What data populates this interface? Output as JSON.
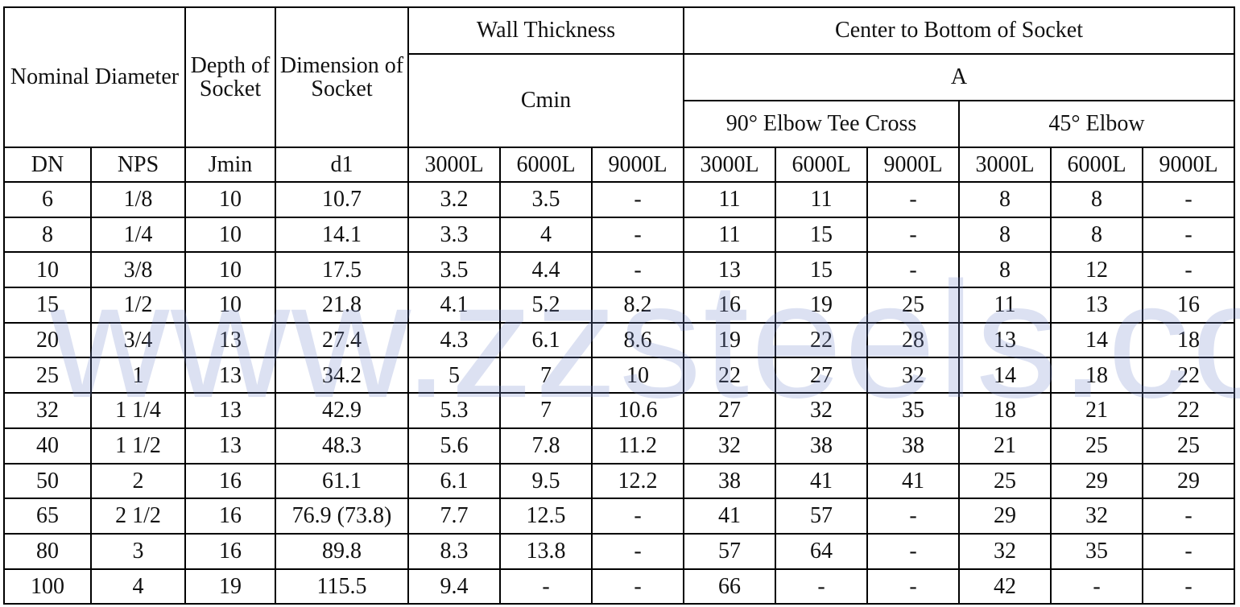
{
  "header": {
    "nominal_diameter": "Nominal Diameter",
    "depth_of_socket": "Depth of Socket",
    "dimension_of_socket": "Dimension of Socket",
    "wall_thickness": "Wall Thickness",
    "cmin": "Cmin",
    "center_to_bottom": "Center to Bottom of Socket",
    "a": "A",
    "elbow_90": "90° Elbow Tee Cross",
    "elbow_45": "45° Elbow"
  },
  "subheader": [
    "DN",
    "NPS",
    "Jmin",
    "d1",
    "3000L",
    "6000L",
    "9000L",
    "3000L",
    "6000L",
    "9000L",
    "3000L",
    "6000L",
    "9000L"
  ],
  "rows": [
    [
      "6",
      "1/8",
      "10",
      "10.7",
      "3.2",
      "3.5",
      "-",
      "11",
      "11",
      "-",
      "8",
      "8",
      "-"
    ],
    [
      "8",
      "1/4",
      "10",
      "14.1",
      "3.3",
      "4",
      "-",
      "11",
      "15",
      "-",
      "8",
      "8",
      "-"
    ],
    [
      "10",
      "3/8",
      "10",
      "17.5",
      "3.5",
      "4.4",
      "-",
      "13",
      "15",
      "-",
      "8",
      "12",
      "-"
    ],
    [
      "15",
      "1/2",
      "10",
      "21.8",
      "4.1",
      "5.2",
      "8.2",
      "16",
      "19",
      "25",
      "11",
      "13",
      "16"
    ],
    [
      "20",
      "3/4",
      "13",
      "27.4",
      "4.3",
      "6.1",
      "8.6",
      "19",
      "22",
      "28",
      "13",
      "14",
      "18"
    ],
    [
      "25",
      "1",
      "13",
      "34.2",
      "5",
      "7",
      "10",
      "22",
      "27",
      "32",
      "14",
      "18",
      "22"
    ],
    [
      "32",
      "1 1/4",
      "13",
      "42.9",
      "5.3",
      "7",
      "10.6",
      "27",
      "32",
      "35",
      "18",
      "21",
      "22"
    ],
    [
      "40",
      "1 1/2",
      "13",
      "48.3",
      "5.6",
      "7.8",
      "11.2",
      "32",
      "38",
      "38",
      "21",
      "25",
      "25"
    ],
    [
      "50",
      "2",
      "16",
      "61.1",
      "6.1",
      "9.5",
      "12.2",
      "38",
      "41",
      "41",
      "25",
      "29",
      "29"
    ],
    [
      "65",
      "2 1/2",
      "16",
      "76.9 (73.8)",
      "7.7",
      "12.5",
      "-",
      "41",
      "57",
      "-",
      "29",
      "32",
      "-"
    ],
    [
      "80",
      "3",
      "16",
      "89.8",
      "8.3",
      "13.8",
      "-",
      "57",
      "64",
      "-",
      "32",
      "35",
      "-"
    ],
    [
      "100",
      "4",
      "19",
      "115.5",
      "9.4",
      "-",
      "-",
      "66",
      "-",
      "-",
      "42",
      "-",
      "-"
    ]
  ],
  "watermark": "www.zzsteels.com"
}
